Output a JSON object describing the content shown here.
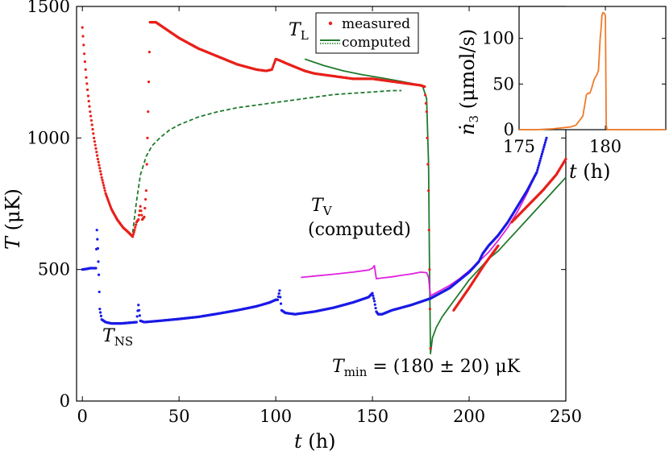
{
  "chart_data": [
    {
      "type": "line",
      "role": "main",
      "xlabel": "t (h)",
      "ylabel": "T (μK)",
      "xlim": [
        -3,
        250
      ],
      "ylim": [
        0,
        1500
      ],
      "xticks": [
        0,
        50,
        100,
        150,
        200,
        250
      ],
      "yticks": [
        0,
        500,
        1000,
        1500
      ],
      "colors": {
        "measured_TL": "#e8201a",
        "T_NS": "#1a1ae6",
        "T_V": "#e020e0",
        "computed_TL": "#1f7a2e",
        "computed_dashed": "#1f7a2e"
      },
      "legend": {
        "title": "T_L",
        "entries": [
          "measured",
          "computed"
        ]
      },
      "annotations": {
        "tl_sym": "T",
        "tl_sub": "L",
        "tv_sym": "T",
        "tv_sub": "V",
        "tv_note": "(computed)",
        "tns_sym": "T",
        "tns_sub": "NS",
        "tmin_sym": "T",
        "tmin_sub": "min",
        "tmin_value": " = (180 ± 20) μK"
      },
      "series": [
        {
          "name": "T_L measured",
          "style": "points",
          "x": [
            0,
            1,
            2,
            3,
            4,
            6,
            8,
            10,
            12,
            15,
            18,
            21,
            24,
            26,
            27,
            28,
            29,
            30,
            31,
            32,
            33,
            34,
            35,
            38,
            42,
            46,
            50,
            55,
            60,
            65,
            70,
            75,
            80,
            85,
            90,
            95,
            98,
            100,
            102,
            105,
            110,
            115,
            120,
            125,
            130,
            135,
            140,
            145,
            150,
            155,
            160,
            165,
            170,
            175,
            177,
            178,
            179,
            179.5,
            180
          ],
          "y": [
            1420,
            1320,
            1230,
            1160,
            1100,
            1000,
            920,
            850,
            790,
            730,
            690,
            660,
            640,
            625,
            650,
            680,
            690,
            740,
            690,
            700,
            800,
            1100,
            1440,
            1440,
            1420,
            1400,
            1380,
            1360,
            1340,
            1325,
            1310,
            1295,
            1280,
            1270,
            1260,
            1255,
            1260,
            1300,
            1295,
            1285,
            1270,
            1255,
            1245,
            1240,
            1235,
            1230,
            1225,
            1225,
            1225,
            1220,
            1215,
            1210,
            1205,
            1200,
            1195,
            1100,
            800,
            500,
            200
          ]
        },
        {
          "name": "T_L measured (late)",
          "style": "points",
          "x": [
            192,
            200,
            208,
            215
          ],
          "y": [
            345,
            430,
            520,
            590
          ]
        },
        {
          "name": "T_L measured (late 2)",
          "style": "points",
          "x": [
            222,
            230,
            238,
            245,
            250
          ],
          "y": [
            680,
            740,
            800,
            860,
            920
          ]
        },
        {
          "name": "T_L computed",
          "style": "line",
          "x": [
            115,
            125,
            135,
            145,
            155,
            165,
            172,
            176,
            178,
            179,
            179.5,
            180,
            181,
            183,
            186,
            190,
            195,
            200,
            205,
            210,
            215,
            220,
            225,
            230,
            235,
            240,
            245,
            250
          ],
          "y": [
            1300,
            1275,
            1255,
            1240,
            1228,
            1215,
            1205,
            1195,
            1150,
            900,
            500,
            180,
            240,
            280,
            320,
            360,
            410,
            460,
            500,
            540,
            570,
            610,
            650,
            690,
            730,
            770,
            810,
            850
          ]
        },
        {
          "name": "T_L computed (dashed)",
          "style": "dashed",
          "x": [
            26,
            28,
            30,
            33,
            36,
            40,
            45,
            50,
            60,
            70,
            80,
            90,
            100,
            110,
            120,
            130,
            140,
            150,
            160,
            165
          ],
          "y": [
            640,
            760,
            860,
            930,
            970,
            1000,
            1030,
            1050,
            1080,
            1100,
            1115,
            1125,
            1135,
            1145,
            1155,
            1165,
            1170,
            1175,
            1180,
            1180
          ]
        },
        {
          "name": "T_NS",
          "style": "points",
          "x": [
            0,
            2,
            4,
            6,
            7,
            7.5,
            8,
            8.5,
            9,
            10,
            12,
            15,
            20,
            25,
            28,
            29,
            30,
            32,
            40,
            50,
            60,
            70,
            80,
            90,
            97,
            100,
            101,
            102,
            103,
            105,
            110,
            120,
            130,
            140,
            148,
            150,
            151,
            152,
            153,
            155,
            160,
            170,
            180,
            190,
            200,
            205,
            207,
            210,
            215,
            220,
            225,
            230,
            235,
            240
          ],
          "y": [
            500,
            502,
            505,
            505,
            505,
            650,
            580,
            480,
            350,
            310,
            300,
            295,
            295,
            298,
            300,
            365,
            305,
            300,
            305,
            312,
            320,
            332,
            345,
            360,
            375,
            385,
            385,
            420,
            345,
            335,
            330,
            340,
            355,
            375,
            395,
            410,
            380,
            340,
            330,
            330,
            345,
            365,
            390,
            430,
            490,
            530,
            560,
            590,
            630,
            680,
            740,
            800,
            870,
            1000
          ]
        },
        {
          "name": "T_V computed",
          "style": "line",
          "x": [
            113,
            120,
            130,
            140,
            148,
            150,
            151,
            152,
            155,
            160,
            165,
            170,
            175,
            178,
            179,
            180,
            185,
            190,
            195,
            200,
            205,
            210,
            215,
            220,
            225,
            230,
            235,
            240
          ],
          "y": [
            470,
            475,
            482,
            490,
            498,
            505,
            515,
            465,
            468,
            472,
            478,
            483,
            490,
            488,
            470,
            400,
            420,
            440,
            465,
            495,
            530,
            565,
            610,
            660,
            720,
            790,
            870,
            1000
          ]
        }
      ]
    },
    {
      "type": "line",
      "role": "inset",
      "xlabel": "t (h)",
      "ylabel": "ṅ3 (μmol/s)",
      "xlim": [
        175,
        183.5
      ],
      "ylim": [
        0,
        135
      ],
      "xticks": [
        175,
        180
      ],
      "yticks": [
        0,
        50,
        100
      ],
      "color": "#f07a2a",
      "x": [
        175,
        176,
        177,
        177.5,
        178,
        178.3,
        178.5,
        178.7,
        178.9,
        179.0,
        179.1,
        179.2,
        179.35,
        179.5,
        179.6,
        179.7,
        179.75,
        179.8,
        179.85,
        179.9,
        179.95,
        180.0,
        180.05,
        180.1,
        183.5
      ],
      "y": [
        0,
        0,
        1,
        2,
        3,
        5,
        10,
        15,
        38,
        40,
        40,
        45,
        55,
        60,
        65,
        100,
        110,
        125,
        128,
        128,
        127,
        125,
        5,
        0,
        0
      ]
    }
  ]
}
